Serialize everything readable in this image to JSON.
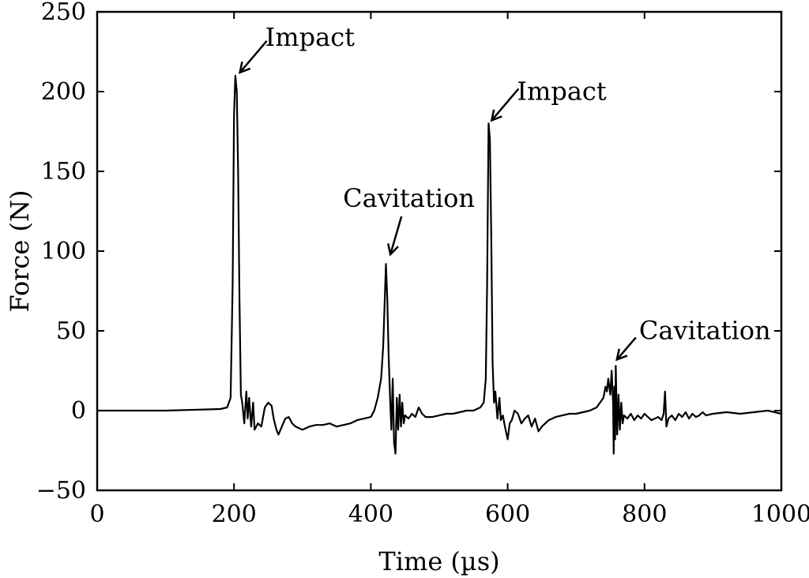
{
  "chart_data": {
    "type": "line",
    "title": "",
    "xlabel": "Time (µs)",
    "ylabel": "Force (N)",
    "xlim": [
      0,
      1000
    ],
    "ylim": [
      -50,
      250
    ],
    "x_ticks": [
      0,
      200,
      400,
      600,
      800,
      1000
    ],
    "x_tick_labels": [
      "0",
      "200",
      "400",
      "600",
      "800",
      "1000"
    ],
    "y_ticks": [
      -50,
      0,
      50,
      100,
      150,
      200,
      250
    ],
    "y_tick_labels": [
      "−50",
      "0",
      "50",
      "100",
      "150",
      "200",
      "250"
    ],
    "grid": false,
    "series": [
      {
        "name": "Force",
        "x": [
          0,
          100,
          180,
          190,
          195,
          198,
          200,
          202,
          204,
          206,
          208,
          210,
          212,
          215,
          218,
          220,
          222,
          225,
          228,
          230,
          235,
          240,
          245,
          250,
          255,
          258,
          262,
          265,
          270,
          275,
          280,
          285,
          290,
          295,
          300,
          310,
          320,
          330,
          340,
          350,
          360,
          370,
          380,
          390,
          400,
          405,
          410,
          415,
          418,
          420,
          422,
          424,
          426,
          428,
          430,
          432,
          434,
          436,
          438,
          440,
          442,
          444,
          446,
          448,
          450,
          455,
          460,
          465,
          470,
          475,
          480,
          490,
          500,
          510,
          520,
          530,
          540,
          550,
          560,
          565,
          568,
          570,
          572,
          574,
          576,
          578,
          580,
          582,
          585,
          588,
          590,
          593,
          596,
          600,
          603,
          606,
          610,
          615,
          620,
          625,
          630,
          635,
          640,
          645,
          650,
          660,
          670,
          680,
          690,
          700,
          710,
          720,
          730,
          735,
          740,
          743,
          745,
          747,
          750,
          752,
          754,
          755,
          756,
          757,
          758,
          760,
          762,
          764,
          766,
          768,
          770,
          775,
          780,
          785,
          790,
          795,
          800,
          805,
          810,
          815,
          820,
          825,
          828,
          830,
          832,
          835,
          840,
          845,
          850,
          855,
          860,
          865,
          870,
          875,
          880,
          885,
          890,
          900,
          920,
          940,
          960,
          980,
          1000
        ],
        "y": [
          0,
          0,
          1,
          2,
          8,
          80,
          185,
          210,
          200,
          150,
          70,
          10,
          5,
          -8,
          12,
          -5,
          8,
          -10,
          5,
          -12,
          -8,
          -10,
          2,
          5,
          3,
          -5,
          -12,
          -15,
          -10,
          -5,
          -4,
          -8,
          -10,
          -11,
          -12,
          -10,
          -9,
          -9,
          -8,
          -10,
          -9,
          -8,
          -6,
          -5,
          -4,
          0,
          8,
          20,
          40,
          65,
          92,
          70,
          35,
          10,
          -12,
          20,
          -20,
          -27,
          8,
          -12,
          10,
          -10,
          5,
          -8,
          -3,
          -5,
          -2,
          -4,
          2,
          -2,
          -4,
          -4,
          -3,
          -2,
          -2,
          -1,
          0,
          0,
          2,
          5,
          20,
          80,
          180,
          170,
          110,
          30,
          5,
          12,
          -5,
          8,
          -6,
          -3,
          -10,
          -18,
          -8,
          -6,
          0,
          -2,
          -8,
          -5,
          -3,
          -10,
          -5,
          -13,
          -10,
          -6,
          -4,
          -3,
          -2,
          -2,
          -1,
          0,
          2,
          5,
          8,
          15,
          12,
          20,
          10,
          25,
          5,
          -27,
          15,
          -18,
          28,
          -15,
          10,
          -12,
          5,
          -8,
          -3,
          -5,
          -2,
          -6,
          -3,
          -5,
          -2,
          -4,
          -6,
          -5,
          -4,
          -6,
          -2,
          12,
          -10,
          -5,
          -3,
          -6,
          -2,
          -4,
          -1,
          -5,
          -2,
          -4,
          -3,
          -1,
          -3,
          -2,
          -1,
          -2,
          -1,
          0,
          -2
        ]
      }
    ],
    "annotations": [
      {
        "text": "Impact",
        "x": 204,
        "y": 210
      },
      {
        "text": "Cavitation",
        "x": 424,
        "y": 96
      },
      {
        "text": "Impact",
        "x": 572,
        "y": 180
      },
      {
        "text": "Cavitation",
        "x": 755,
        "y": 30
      }
    ]
  }
}
